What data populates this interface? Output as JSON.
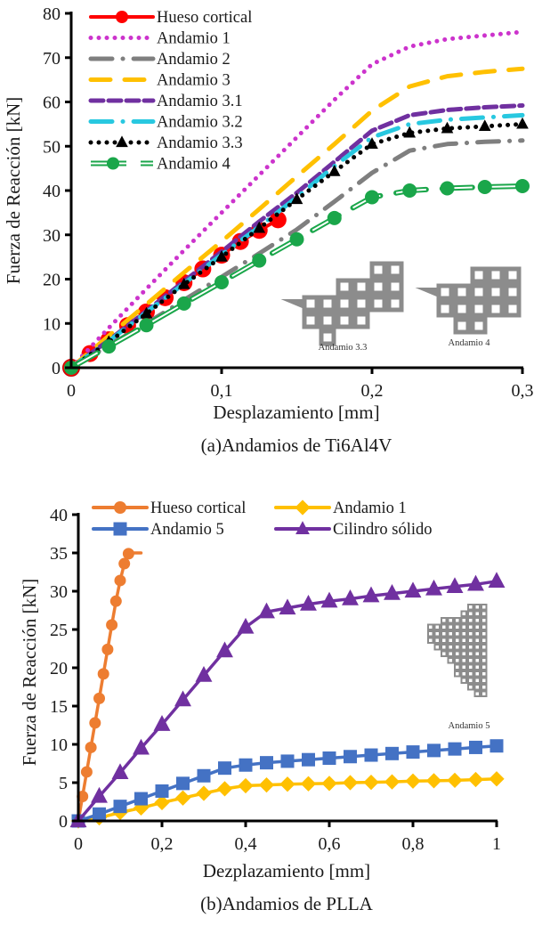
{
  "chart_data": [
    {
      "type": "line",
      "id": "top",
      "caption": "(a)Andamios de Ti6Al4V",
      "xlabel": "Desplazamiento [mm]",
      "ylabel": "Fuerza de Reacción [kN]",
      "xlim": [
        0,
        0.3
      ],
      "ylim": [
        0,
        80
      ],
      "xticks": [
        0,
        0.1,
        0.2,
        0.3
      ],
      "xtick_labels": [
        "0",
        "0,1",
        "0,2",
        "0,3"
      ],
      "yticks": [
        0,
        10,
        20,
        30,
        40,
        50,
        60,
        70,
        80
      ],
      "ytick_labels": [
        "0",
        "10",
        "20",
        "30",
        "40",
        "50",
        "60",
        "70",
        "80"
      ],
      "grid": false,
      "legend_position": "top-left",
      "insets": [
        {
          "label": "Andamio 3.3",
          "kind": "lattice-3.3"
        },
        {
          "label": "Andamio 4",
          "kind": "lattice-4"
        }
      ],
      "series": [
        {
          "name": "Hueso cortical",
          "color": "#ff0000",
          "style": "solid",
          "marker": "circle",
          "x": [
            0,
            0.0125,
            0.025,
            0.0375,
            0.05,
            0.0625,
            0.075,
            0.0875,
            0.1,
            0.1125,
            0.125,
            0.1375
          ],
          "y": [
            0,
            3.2,
            6.3,
            9.5,
            12.6,
            15.8,
            19.2,
            22.3,
            25.4,
            28.5,
            31.0,
            33.4
          ]
        },
        {
          "name": "Andamio 1",
          "color": "#cc33cc",
          "style": "dot",
          "marker": "none",
          "x": [
            0,
            0.025,
            0.05,
            0.075,
            0.1,
            0.125,
            0.15,
            0.175,
            0.2,
            0.225,
            0.25,
            0.275,
            0.3
          ],
          "y": [
            0,
            9,
            17.8,
            26.5,
            35,
            43.5,
            52,
            60.5,
            68.5,
            72.5,
            74.2,
            75,
            75.8
          ]
        },
        {
          "name": "Andamio 2",
          "color": "#7f7f7f",
          "style": "dashdot",
          "marker": "none",
          "x": [
            0,
            0.025,
            0.05,
            0.075,
            0.1,
            0.125,
            0.15,
            0.175,
            0.2,
            0.225,
            0.25,
            0.275,
            0.3
          ],
          "y": [
            0,
            5,
            10,
            15.3,
            20.5,
            25.8,
            31.2,
            37.5,
            44,
            49,
            50.5,
            51,
            51.3
          ]
        },
        {
          "name": "Andamio 3",
          "color": "#ffc000",
          "style": "longdash",
          "marker": "none",
          "x": [
            0,
            0.025,
            0.05,
            0.075,
            0.1,
            0.125,
            0.15,
            0.175,
            0.2,
            0.225,
            0.25,
            0.275,
            0.3
          ],
          "y": [
            0,
            7.2,
            14.3,
            21.5,
            28.5,
            35.8,
            43.2,
            50.5,
            58,
            63.5,
            65.8,
            66.8,
            67.5
          ]
        },
        {
          "name": "Andamio 3.1",
          "color": "#7030a0",
          "style": "dash",
          "marker": "none",
          "x": [
            0,
            0.025,
            0.05,
            0.075,
            0.1,
            0.125,
            0.15,
            0.175,
            0.2,
            0.225,
            0.25,
            0.275,
            0.3
          ],
          "y": [
            0,
            6.2,
            12.8,
            19.5,
            26.2,
            33,
            39.5,
            46.5,
            53.5,
            57,
            58.2,
            58.8,
            59.2
          ]
        },
        {
          "name": "Andamio 3.2",
          "color": "#28c8e0",
          "style": "dashdot",
          "marker": "none",
          "x": [
            0,
            0.025,
            0.05,
            0.075,
            0.1,
            0.125,
            0.15,
            0.175,
            0.2,
            0.225,
            0.25,
            0.275,
            0.3
          ],
          "y": [
            0,
            6,
            12.5,
            19,
            25.5,
            31.8,
            38.5,
            45.5,
            52,
            55,
            56,
            56.5,
            57
          ]
        },
        {
          "name": "Andamio 3.3",
          "color": "#000000",
          "style": "dot",
          "marker": "triangle",
          "x": [
            0,
            0.025,
            0.05,
            0.075,
            0.1,
            0.125,
            0.15,
            0.175,
            0.2,
            0.225,
            0.25,
            0.275,
            0.3
          ],
          "y": [
            0,
            5.8,
            12.2,
            18.8,
            25,
            31.5,
            38,
            44.3,
            50.5,
            53,
            54,
            54.5,
            55
          ]
        },
        {
          "name": "Andamio 4",
          "color": "#1aa64a",
          "style": "double",
          "marker": "circle",
          "x": [
            0,
            0.025,
            0.05,
            0.075,
            0.1,
            0.125,
            0.15,
            0.175,
            0.2,
            0.225,
            0.25,
            0.275,
            0.3
          ],
          "y": [
            0,
            4.8,
            9.6,
            14.5,
            19.3,
            24.2,
            29,
            33.8,
            38.5,
            40,
            40.5,
            40.8,
            41
          ]
        }
      ]
    },
    {
      "type": "line",
      "id": "bottom",
      "caption": "(b)Andamios de PLLA",
      "xlabel": "Dezplazamiento [mm]",
      "ylabel": "Fuerza de Reacción [kN]",
      "xlim": [
        0,
        1
      ],
      "ylim": [
        0,
        40
      ],
      "xticks": [
        0,
        0.2,
        0.4,
        0.6,
        0.8,
        1
      ],
      "xtick_labels": [
        "0",
        "0,2",
        "0,4",
        "0,6",
        "0,8",
        "1"
      ],
      "yticks": [
        0,
        5,
        10,
        15,
        20,
        25,
        30,
        35,
        40
      ],
      "ytick_labels": [
        "0",
        "5",
        "10",
        "15",
        "20",
        "25",
        "30",
        "35",
        "40"
      ],
      "grid": false,
      "legend_position": "top",
      "insets": [
        {
          "label": "Andamio 5",
          "kind": "lattice-5"
        }
      ],
      "series": [
        {
          "name": "Hueso cortical",
          "color": "#ed7d31",
          "style": "solid",
          "marker": "circle",
          "x": [
            0,
            0.01,
            0.02,
            0.03,
            0.04,
            0.05,
            0.06,
            0.07,
            0.08,
            0.09,
            0.1,
            0.11,
            0.12,
            0.13,
            0.14,
            0.15
          ],
          "y": [
            0,
            3.2,
            6.4,
            9.6,
            12.8,
            16,
            19.2,
            22.4,
            25.6,
            28.7,
            31.4,
            33.6,
            34.9,
            35,
            35,
            35
          ]
        },
        {
          "name": "Andamio 1",
          "color": "#ffc000",
          "style": "solid",
          "marker": "diamond",
          "x": [
            0,
            0.05,
            0.1,
            0.15,
            0.2,
            0.25,
            0.3,
            0.35,
            0.4,
            0.45,
            0.5,
            0.55,
            0.6,
            0.65,
            0.7,
            0.75,
            0.8,
            0.85,
            0.9,
            0.95,
            1
          ],
          "y": [
            0,
            0.4,
            1.1,
            1.7,
            2.4,
            3.0,
            3.6,
            4.2,
            4.6,
            4.7,
            4.8,
            4.85,
            4.9,
            5.0,
            5.05,
            5.1,
            5.2,
            5.25,
            5.3,
            5.4,
            5.5
          ]
        },
        {
          "name": "Andamio 5",
          "color": "#4472c4",
          "style": "solid",
          "marker": "square",
          "x": [
            0,
            0.05,
            0.1,
            0.15,
            0.2,
            0.25,
            0.3,
            0.35,
            0.4,
            0.45,
            0.5,
            0.55,
            0.6,
            0.65,
            0.7,
            0.75,
            0.8,
            0.85,
            0.9,
            0.95,
            1
          ],
          "y": [
            0,
            0.9,
            1.9,
            2.9,
            3.9,
            4.9,
            5.9,
            6.9,
            7.3,
            7.6,
            7.8,
            8.0,
            8.2,
            8.4,
            8.6,
            8.8,
            9.0,
            9.2,
            9.4,
            9.6,
            9.8
          ]
        },
        {
          "name": "Cilindro sólido",
          "color": "#7030a0",
          "style": "solid",
          "marker": "triangle",
          "x": [
            0,
            0.05,
            0.1,
            0.15,
            0.2,
            0.25,
            0.3,
            0.35,
            0.4,
            0.45,
            0.5,
            0.55,
            0.6,
            0.65,
            0.7,
            0.75,
            0.8,
            0.85,
            0.9,
            0.95,
            1
          ],
          "y": [
            0,
            3.2,
            6.3,
            9.5,
            12.6,
            15.8,
            19.0,
            22.2,
            25.3,
            27.3,
            27.8,
            28.3,
            28.7,
            29.0,
            29.4,
            29.7,
            30.0,
            30.3,
            30.6,
            30.9,
            31.3
          ]
        }
      ]
    }
  ]
}
